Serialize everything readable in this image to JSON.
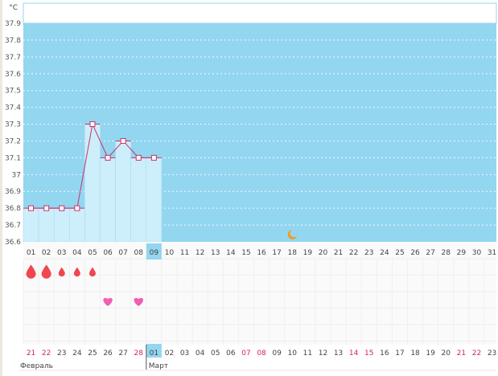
{
  "chart_data": {
    "type": "bar",
    "unit_label": "°C",
    "y_ticks": [
      "37.9",
      "37.8",
      "37.7",
      "37.6",
      "37.5",
      "37.4",
      "37.3",
      "37.2",
      "37.1",
      "37",
      "36.9",
      "36.8",
      "36.7",
      "36.6"
    ],
    "ylim": [
      36.6,
      37.9
    ],
    "grid": true,
    "cycle_days": [
      "01",
      "02",
      "03",
      "04",
      "05",
      "06",
      "07",
      "08",
      "09",
      "10",
      "11",
      "12",
      "13",
      "14",
      "15",
      "16",
      "17",
      "18",
      "19",
      "20",
      "21",
      "22",
      "23",
      "24",
      "25",
      "26",
      "27",
      "28",
      "29",
      "30",
      "31"
    ],
    "temperatures": [
      36.8,
      36.8,
      36.8,
      36.8,
      37.3,
      37.1,
      37.2,
      37.1,
      37.1
    ],
    "selected_day": "09",
    "moon_day": "18",
    "bleeding": [
      {
        "day": "01",
        "intensity": "heavy"
      },
      {
        "day": "02",
        "intensity": "heavy"
      },
      {
        "day": "03",
        "intensity": "light"
      },
      {
        "day": "04",
        "intensity": "light"
      },
      {
        "day": "05",
        "intensity": "light"
      }
    ],
    "hearts": [
      "06",
      "08"
    ],
    "calendar_dates": [
      {
        "d": "21",
        "weekend": true
      },
      {
        "d": "22",
        "weekend": true
      },
      {
        "d": "23"
      },
      {
        "d": "24"
      },
      {
        "d": "25"
      },
      {
        "d": "26"
      },
      {
        "d": "27"
      },
      {
        "d": "28",
        "weekend": true
      },
      {
        "d": "01",
        "today": true
      },
      {
        "d": "02"
      },
      {
        "d": "03"
      },
      {
        "d": "04"
      },
      {
        "d": "05"
      },
      {
        "d": "06"
      },
      {
        "d": "07",
        "weekend": true
      },
      {
        "d": "08",
        "weekend": true
      },
      {
        "d": "09"
      },
      {
        "d": "10"
      },
      {
        "d": "11"
      },
      {
        "d": "12"
      },
      {
        "d": "13"
      },
      {
        "d": "14",
        "weekend": true
      },
      {
        "d": "15",
        "weekend": true
      },
      {
        "d": "16"
      },
      {
        "d": "17"
      },
      {
        "d": "18"
      },
      {
        "d": "19"
      },
      {
        "d": "20"
      },
      {
        "d": "21",
        "weekend": true
      },
      {
        "d": "22",
        "weekend": true
      },
      {
        "d": "23"
      }
    ],
    "months": [
      {
        "name": "Февраль",
        "start_index": 0
      },
      {
        "name": "Март",
        "start_index": 8
      }
    ],
    "colors": {
      "plot_bg": "#93d6f0",
      "bar": "#cdeefb",
      "line": "#c8336a",
      "weekend": "#d0245a",
      "drop": "#f0474f",
      "heart": "#f55cb4",
      "moon": "#f29a1d"
    }
  }
}
